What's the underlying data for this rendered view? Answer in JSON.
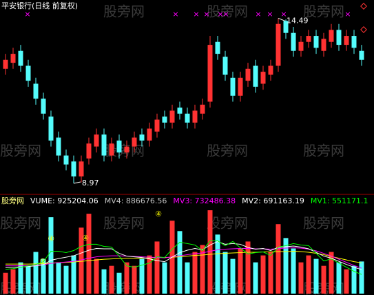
{
  "header": {
    "title": "平安银行(日线 前复权)",
    "watermark": "股旁网"
  },
  "chart_data": [
    {
      "type": "candlestick",
      "up_color": "#ff3232",
      "down_color": "#54fcfc",
      "ylim": [
        8.6,
        15.1
      ],
      "open": [
        12.8,
        13.0,
        13.4,
        12.9,
        12.3,
        11.8,
        11.2,
        10.5,
        9.9,
        9.7,
        9.2,
        9.8,
        10.2,
        10.6,
        9.9,
        10.4,
        10.0,
        10.2,
        10.6,
        10.4,
        10.7,
        11.2,
        11.0,
        11.5,
        11.3,
        11.0,
        11.3,
        11.7,
        13.7,
        13.2,
        12.5,
        11.9,
        12.4,
        12.9,
        12.3,
        12.6,
        12.9,
        14.4,
        14.0,
        13.4,
        13.7,
        13.9,
        13.4,
        13.7,
        14.1,
        13.6,
        13.9,
        13.4
      ],
      "high": [
        13.3,
        13.5,
        13.6,
        13.1,
        12.5,
        12.0,
        11.4,
        10.7,
        10.1,
        9.9,
        9.9,
        10.5,
        10.8,
        10.8,
        10.5,
        10.6,
        10.4,
        10.7,
        10.8,
        11.0,
        11.3,
        11.4,
        11.6,
        11.7,
        11.5,
        11.6,
        11.8,
        13.9,
        13.9,
        13.4,
        12.7,
        12.7,
        13.0,
        13.1,
        12.9,
        13.1,
        14.49,
        14.45,
        14.2,
        13.9,
        14.1,
        14.1,
        14.0,
        14.3,
        14.3,
        14.1,
        14.1,
        13.6
      ],
      "low": [
        12.6,
        12.8,
        12.7,
        12.2,
        11.6,
        11.1,
        10.2,
        9.7,
        9.4,
        8.97,
        9.0,
        9.6,
        10.0,
        9.7,
        9.7,
        9.8,
        9.8,
        10.0,
        10.2,
        10.2,
        10.5,
        10.8,
        10.8,
        11.1,
        10.8,
        10.8,
        11.1,
        11.5,
        13.1,
        12.4,
        11.7,
        11.7,
        12.2,
        12.0,
        12.1,
        12.4,
        12.7,
        13.8,
        13.2,
        13.2,
        13.5,
        13.3,
        13.2,
        13.5,
        13.4,
        13.4,
        13.3,
        12.9
      ],
      "close": [
        13.1,
        13.3,
        12.9,
        12.4,
        11.8,
        11.3,
        10.4,
        9.9,
        9.6,
        9.2,
        9.7,
        10.3,
        10.6,
        9.9,
        10.3,
        10.0,
        10.2,
        10.5,
        10.4,
        10.8,
        11.1,
        11.0,
        11.4,
        11.3,
        11.0,
        11.4,
        11.6,
        13.6,
        13.3,
        12.6,
        11.9,
        12.5,
        12.8,
        12.2,
        12.7,
        12.9,
        14.3,
        14.0,
        13.4,
        13.7,
        13.9,
        13.5,
        13.8,
        14.1,
        13.6,
        13.9,
        13.5,
        13.1
      ]
    },
    {
      "type": "bar",
      "title": "股旁网",
      "ylim": [
        0,
        2500000
      ],
      "annotations": [
        "①",
        "④",
        "④",
        "④"
      ],
      "series": [
        {
          "name": "VUME: 925204.06",
          "color": "#ffffff",
          "values": [
            600000,
            700000,
            900000,
            800000,
            1200000,
            1000000,
            2200000,
            900000,
            800000,
            1100000,
            1900000,
            2300000,
            1000000,
            700000,
            800000,
            600000,
            900000,
            800000,
            1000000,
            1100000,
            1500000,
            900000,
            2100000,
            1800000,
            900000,
            1200000,
            1400000,
            2400000,
            1700000,
            1200000,
            1000000,
            1300000,
            1500000,
            900000,
            1100000,
            1200000,
            2000000,
            1600000,
            1300000,
            900000,
            1100000,
            1000000,
            800000,
            1200000,
            900000,
            700000,
            800000,
            925204.06
          ]
        },
        {
          "name": "MV4: 886676.56",
          "color": "#c0c0c0",
          "line_color": "#ffff00",
          "values": [
            850000,
            850000,
            850000,
            850000,
            855000,
            860000,
            880000,
            890000,
            900000,
            910000,
            930000,
            950000,
            970000,
            990000,
            1000000,
            1010000,
            1020000,
            1020000,
            1020000,
            1030000,
            1040000,
            1040000,
            1050000,
            1060000,
            1080000,
            1100000,
            1110000,
            1130000,
            1150000,
            1160000,
            1170000,
            1180000,
            1190000,
            1190000,
            1200000,
            1200000,
            1210000,
            1210000,
            1220000,
            1210000,
            1190000,
            1160000,
            1120000,
            1070000,
            1020000,
            970000,
            920000,
            886676.56
          ]
        },
        {
          "name": "MV3: 732486.38",
          "color": "#ff00ff",
          "values": [
            800000,
            800000,
            800000,
            810000,
            820000,
            830000,
            870000,
            890000,
            910000,
            930000,
            970000,
            1020000,
            1060000,
            1080000,
            1090000,
            1090000,
            1080000,
            1070000,
            1060000,
            1050000,
            1040000,
            1030000,
            1060000,
            1090000,
            1120000,
            1150000,
            1170000,
            1220000,
            1260000,
            1280000,
            1290000,
            1300000,
            1300000,
            1290000,
            1290000,
            1280000,
            1300000,
            1310000,
            1320000,
            1310000,
            1280000,
            1230000,
            1160000,
            1080000,
            990000,
            900000,
            810000,
            732486.38
          ]
        },
        {
          "name": "MV2: 691163.19",
          "color": "#ffffff",
          "values": [
            750000,
            760000,
            770000,
            780000,
            800000,
            830000,
            960000,
            1010000,
            1050000,
            1090000,
            1170000,
            1250000,
            1300000,
            1290000,
            1290000,
            1160000,
            1080000,
            1060000,
            1040000,
            1000000,
            950000,
            920000,
            1050000,
            1180000,
            1250000,
            1300000,
            1260000,
            1400000,
            1500000,
            1420000,
            1440000,
            1420000,
            1330000,
            1280000,
            1300000,
            1240000,
            1330000,
            1350000,
            1370000,
            1340000,
            1290000,
            1190000,
            1080000,
            1020000,
            930000,
            840000,
            760000,
            691163.19
          ]
        },
        {
          "name": "MV1: 551171.1",
          "color": "#00ff00",
          "values": [
            700000,
            720000,
            760000,
            800000,
            840000,
            920000,
            1220000,
            1220000,
            1180000,
            1240000,
            1360000,
            1420000,
            1420000,
            1360000,
            1340000,
            1080000,
            800000,
            760000,
            820000,
            880000,
            1060000,
            1040000,
            1280000,
            1480000,
            1440000,
            1400000,
            1240000,
            1520000,
            1520000,
            1380000,
            1500000,
            1320000,
            1140000,
            1180000,
            1200000,
            1100000,
            1340000,
            1380000,
            1440000,
            1400000,
            1380000,
            1160000,
            940000,
            1000000,
            880000,
            760000,
            640000,
            551171.1
          ]
        }
      ]
    }
  ]
}
